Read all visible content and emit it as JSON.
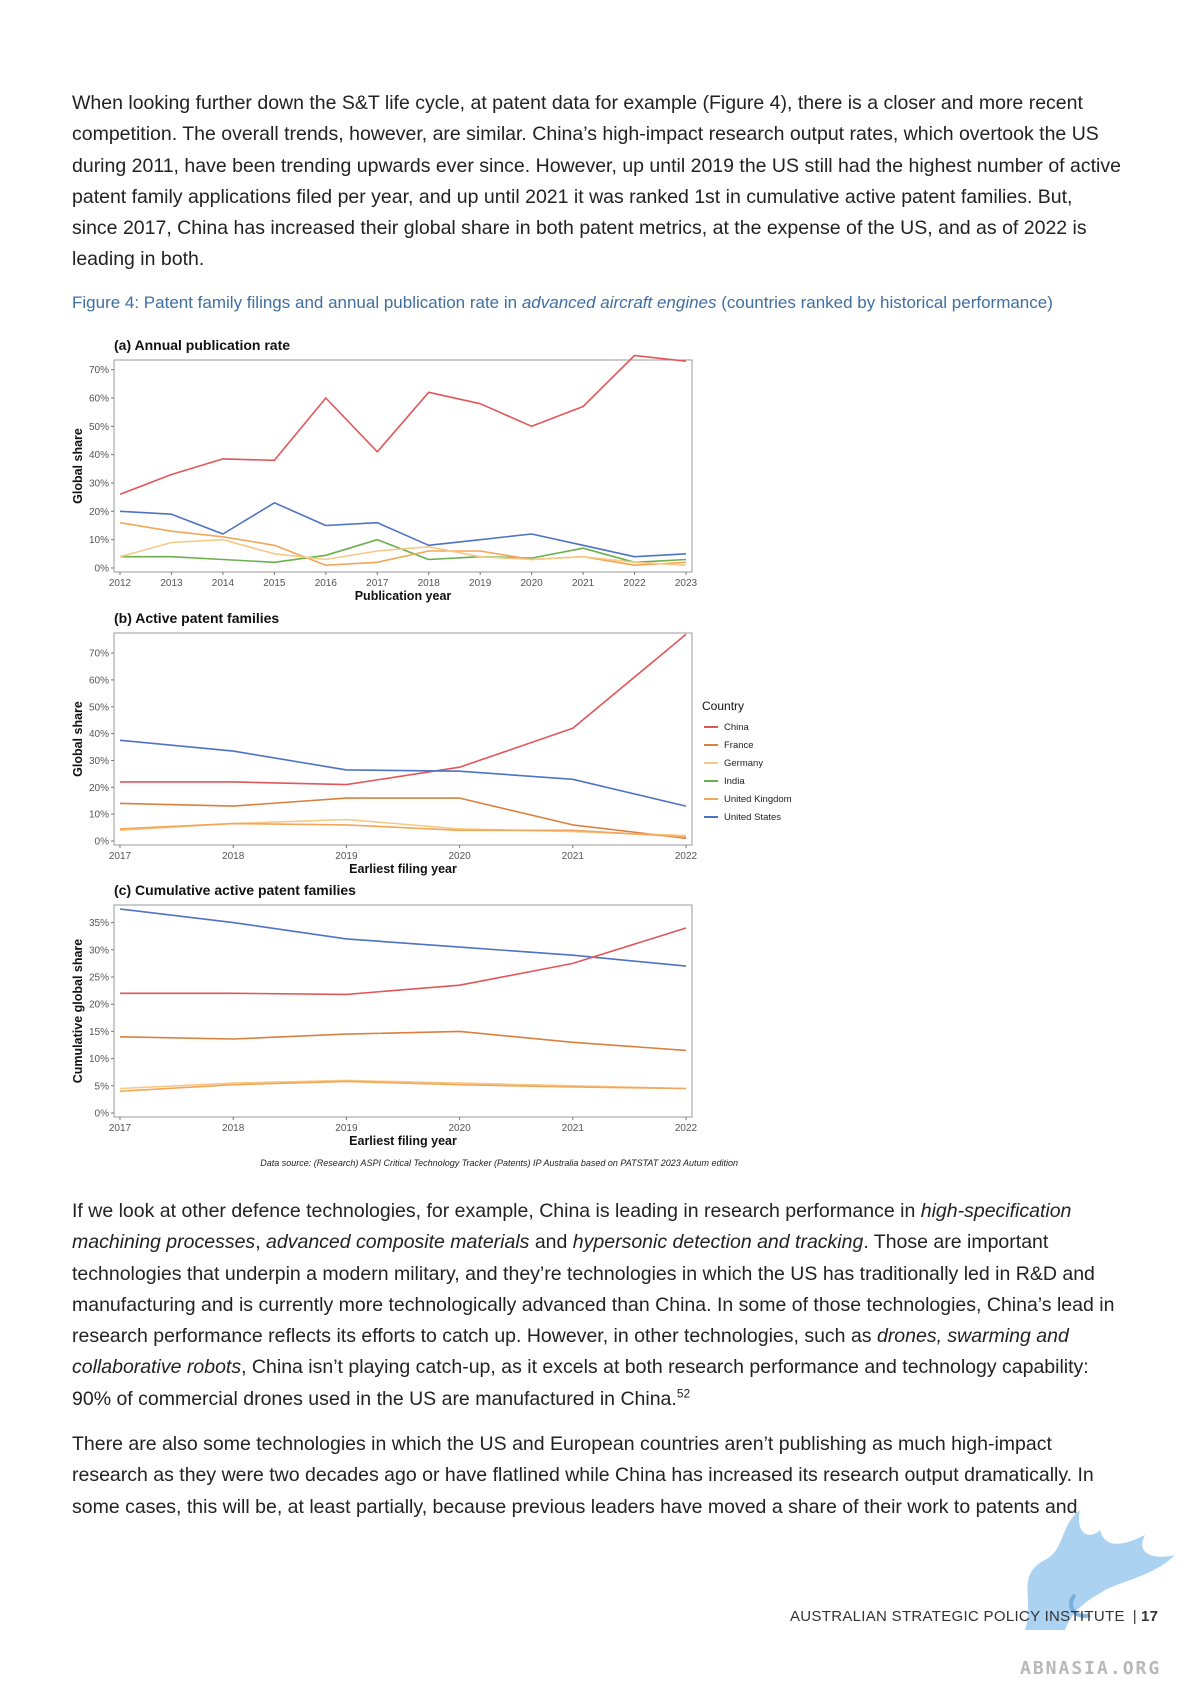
{
  "paragraphs": {
    "p1": "When looking further down the S&T life cycle, at patent data for example (Figure 4), there is a closer and more recent competition. The overall trends, however, are similar. China’s high-impact research output rates, which overtook the US during 2011, have been trending upwards ever since. However, up until 2019 the US still had the highest number of active patent family applications filed per year, and up until 2021 it was ranked 1st in cumulative active patent families. But, since 2017, China has increased their global share in both patent metrics, at the expense of the US, and as of 2022 is leading in both.",
    "p2": {
      "a": "If we look at other defence technologies, for example, China is leading in research performance in ",
      "b": "high-specification machining processes",
      "c": ", ",
      "d": "advanced composite materials",
      "e": " and ",
      "f": "hypersonic detection and tracking",
      "g": ". Those are important technologies that underpin a modern military, and they’re technologies in which the US has traditionally led in R&D and manufacturing and is currently more technologically advanced than China. In some of those technologies, China’s lead in research performance reflects its efforts to catch up. However, in other technologies, such as ",
      "h": "drones, swarming and collaborative robots",
      "i": ", China isn’t playing catch-up, as it excels at both research performance and technology capability: 90% of commercial drones used in the US are manufactured in China.",
      "sup": "52"
    },
    "p3": "There are also some technologies in which the US and European countries aren’t publishing as much high-impact research as they were two decades ago or have flatlined while China has increased its research output dramatically. In some cases, this will be, at least partially, because previous leaders have moved a share of their work to patents and"
  },
  "figure": {
    "caption_prefix": "Figure 4:  Patent family filings and annual publication rate in ",
    "caption_italic": "advanced aircraft engines",
    "caption_suffix": " (countries ranked by historical performance)",
    "source": "Data source: (Research) ASPI Critical Technology Tracker (Patents) IP Australia based on PATSTAT 2023 Autum edition"
  },
  "colors": {
    "China": "#e15759",
    "France": "#d9803f",
    "Germany": "#f6c987",
    "India": "#6ab04c",
    "United Kingdom": "#f2a65a",
    "United States": "#4e72c4"
  },
  "legend": {
    "title": "Country",
    "items": [
      "China",
      "France",
      "Germany",
      "India",
      "United Kingdom",
      "United States"
    ]
  },
  "chart_data": [
    {
      "type": "line",
      "title": "(a) Annual publication rate",
      "xlabel": "Publication year",
      "ylabel": "Global share",
      "ylim": [
        0,
        72
      ],
      "yticks": [
        "0%",
        "10%",
        "20%",
        "30%",
        "40%",
        "50%",
        "60%",
        "70%"
      ],
      "x": [
        2012,
        2013,
        2014,
        2015,
        2016,
        2017,
        2018,
        2019,
        2020,
        2021,
        2022,
        2023
      ],
      "series": [
        {
          "name": "China",
          "values": [
            26,
            33,
            38.5,
            38,
            60,
            41,
            62,
            58,
            50,
            57,
            75,
            73
          ]
        },
        {
          "name": "United States",
          "values": [
            20,
            19,
            12,
            23,
            15,
            16,
            8,
            10,
            12,
            8,
            4,
            5
          ]
        },
        {
          "name": "India",
          "values": [
            4,
            4,
            3,
            2,
            4.5,
            10,
            3,
            4,
            3.5,
            7,
            2,
            3
          ]
        },
        {
          "name": "United Kingdom",
          "values": [
            16,
            13,
            11,
            8,
            1,
            2,
            6,
            6,
            3,
            4,
            1,
            2
          ]
        },
        {
          "name": "Germany",
          "values": [
            4,
            9,
            10,
            5,
            3,
            6,
            7.5,
            4,
            3,
            4,
            2,
            1
          ]
        }
      ]
    },
    {
      "type": "line",
      "title": "(b) Active patent families",
      "xlabel": "Earliest filing year",
      "ylabel": "Global share",
      "ylim": [
        0,
        76
      ],
      "yticks": [
        "0%",
        "10%",
        "20%",
        "30%",
        "40%",
        "50%",
        "60%",
        "70%"
      ],
      "x": [
        2017,
        2018,
        2019,
        2020,
        2021,
        2022
      ],
      "series": [
        {
          "name": "China",
          "values": [
            22,
            22,
            21,
            27.5,
            42,
            77
          ]
        },
        {
          "name": "United States",
          "values": [
            37.5,
            33.5,
            26.5,
            26,
            23,
            13
          ]
        },
        {
          "name": "France",
          "values": [
            14,
            13,
            16,
            16,
            6,
            1
          ]
        },
        {
          "name": "Germany",
          "values": [
            4,
            6.5,
            8,
            4.5,
            3.5,
            2
          ]
        },
        {
          "name": "United Kingdom",
          "values": [
            4.5,
            6.5,
            6,
            4,
            4,
            1.5
          ]
        }
      ]
    },
    {
      "type": "line",
      "title": "(c) Cumulative active patent families",
      "xlabel": "Earliest filing year",
      "ylabel": "Cumulative global share",
      "ylim": [
        0,
        37.5
      ],
      "yticks": [
        "0%",
        "5%",
        "10%",
        "15%",
        "20%",
        "25%",
        "30%",
        "35%"
      ],
      "x": [
        2017,
        2018,
        2019,
        2020,
        2021,
        2022
      ],
      "series": [
        {
          "name": "United States",
          "values": [
            37.5,
            35,
            32,
            30.5,
            29,
            27
          ]
        },
        {
          "name": "China",
          "values": [
            22,
            22,
            21.8,
            23.5,
            27.5,
            34
          ]
        },
        {
          "name": "France",
          "values": [
            14,
            13.6,
            14.5,
            15,
            13,
            11.5
          ]
        },
        {
          "name": "Germany",
          "values": [
            4.5,
            5.5,
            6,
            5.5,
            5,
            4.5
          ]
        },
        {
          "name": "United Kingdom",
          "values": [
            4,
            5.2,
            5.8,
            5.2,
            4.8,
            4.5
          ]
        }
      ]
    }
  ],
  "footer": {
    "org": "AUSTRALIAN STRATEGIC POLICY INSTITUTE",
    "separator": "|",
    "page": "17"
  },
  "watermark": "ABNASIA.ORG"
}
